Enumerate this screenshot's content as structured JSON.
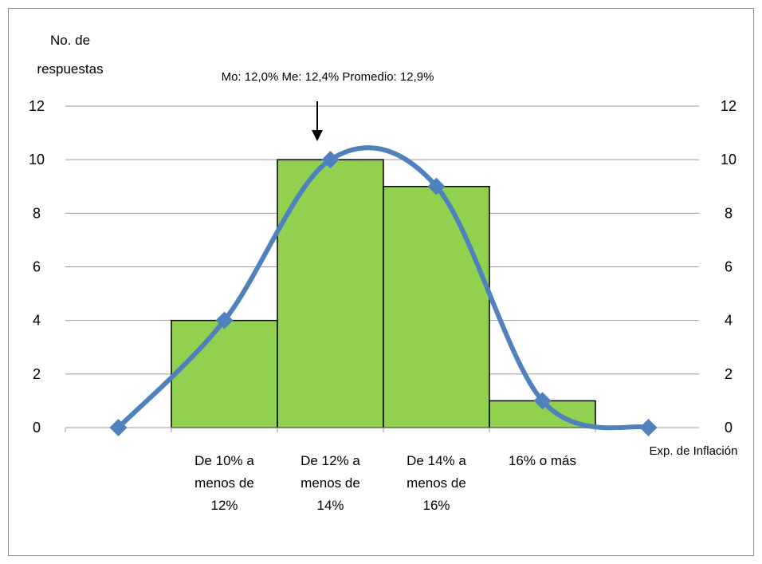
{
  "chart_data": {
    "type": "bar",
    "title": "",
    "ylabel": "No. de respuestas",
    "xlabel": "Exp. de Inflación",
    "annotation": "Mo: 12,0% Me: 12,4% Promedio: 12,9%",
    "ylim": [
      0,
      12
    ],
    "yticks": [
      0,
      2,
      4,
      6,
      8,
      10,
      12
    ],
    "grid": true,
    "categories": [
      "De 10% a menos de 12%",
      "De 12% a menos de 14%",
      "De 14% a menos de 16%",
      "16% o más"
    ],
    "category_lines": [
      [
        "De 10% a",
        "menos de",
        "12%"
      ],
      [
        "De 12% a",
        "menos de",
        "14%"
      ],
      [
        "De 14% a",
        "menos de",
        "16%"
      ],
      [
        "16% o más"
      ]
    ],
    "values": [
      4,
      10,
      9,
      1
    ],
    "curve_points": [
      0,
      4,
      10,
      9,
      1,
      0
    ],
    "colors": {
      "bar": "#92d050",
      "bar_border": "#000000",
      "curve": "#4f81bd",
      "grid": "#9b9b9b"
    }
  }
}
